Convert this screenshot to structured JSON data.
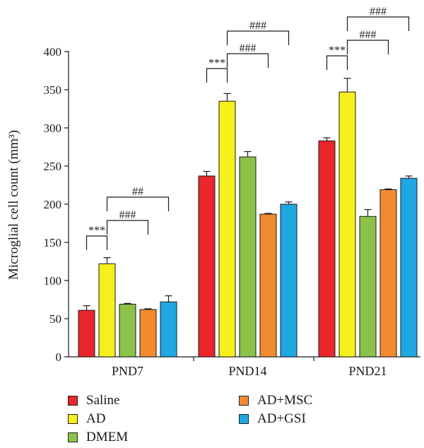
{
  "chart_data": {
    "type": "bar",
    "ylabel": "Microglial cell count (mm³)",
    "ylim": [
      0,
      400
    ],
    "yticks": [
      0,
      50,
      100,
      150,
      200,
      250,
      300,
      350,
      400
    ],
    "categories": [
      "PND7",
      "PND14",
      "PND21"
    ],
    "series": [
      {
        "name": "Saline",
        "color": "#e8262b",
        "values": [
          61,
          237,
          283
        ],
        "errors": [
          6,
          6,
          4
        ]
      },
      {
        "name": "AD",
        "color": "#f5ef1c",
        "values": [
          122,
          335,
          347
        ],
        "errors": [
          8,
          10,
          18
        ]
      },
      {
        "name": "DMEM",
        "color": "#8cc24a",
        "values": [
          69,
          262,
          184
        ],
        "errors": [
          1,
          7,
          9
        ]
      },
      {
        "name": "AD+MSC",
        "color": "#f28a30",
        "values": [
          62,
          187,
          219
        ],
        "errors": [
          1,
          1,
          1
        ]
      },
      {
        "name": "AD+GSI",
        "color": "#1fa7e1",
        "values": [
          72,
          200,
          234
        ],
        "errors": [
          8,
          3,
          3
        ]
      }
    ],
    "annotations": [
      {
        "group": "PND7",
        "from": "Saline",
        "to": "AD",
        "label": "***"
      },
      {
        "group": "PND7",
        "from": "AD",
        "to": "AD+MSC",
        "label": "###"
      },
      {
        "group": "PND7",
        "from": "AD",
        "to": "AD+GSI",
        "label": "##"
      },
      {
        "group": "PND14",
        "from": "Saline",
        "to": "AD",
        "label": "***"
      },
      {
        "group": "PND14",
        "from": "AD",
        "to": "AD+MSC",
        "label": "###"
      },
      {
        "group": "PND14",
        "from": "AD",
        "to": "AD+GSI",
        "label": "###"
      },
      {
        "group": "PND21",
        "from": "Saline",
        "to": "AD",
        "label": "***"
      },
      {
        "group": "PND21",
        "from": "AD",
        "to": "AD+MSC",
        "label": "###"
      },
      {
        "group": "PND21",
        "from": "AD",
        "to": "AD+GSI",
        "label": "###"
      }
    ],
    "legend_position": "bottom"
  }
}
